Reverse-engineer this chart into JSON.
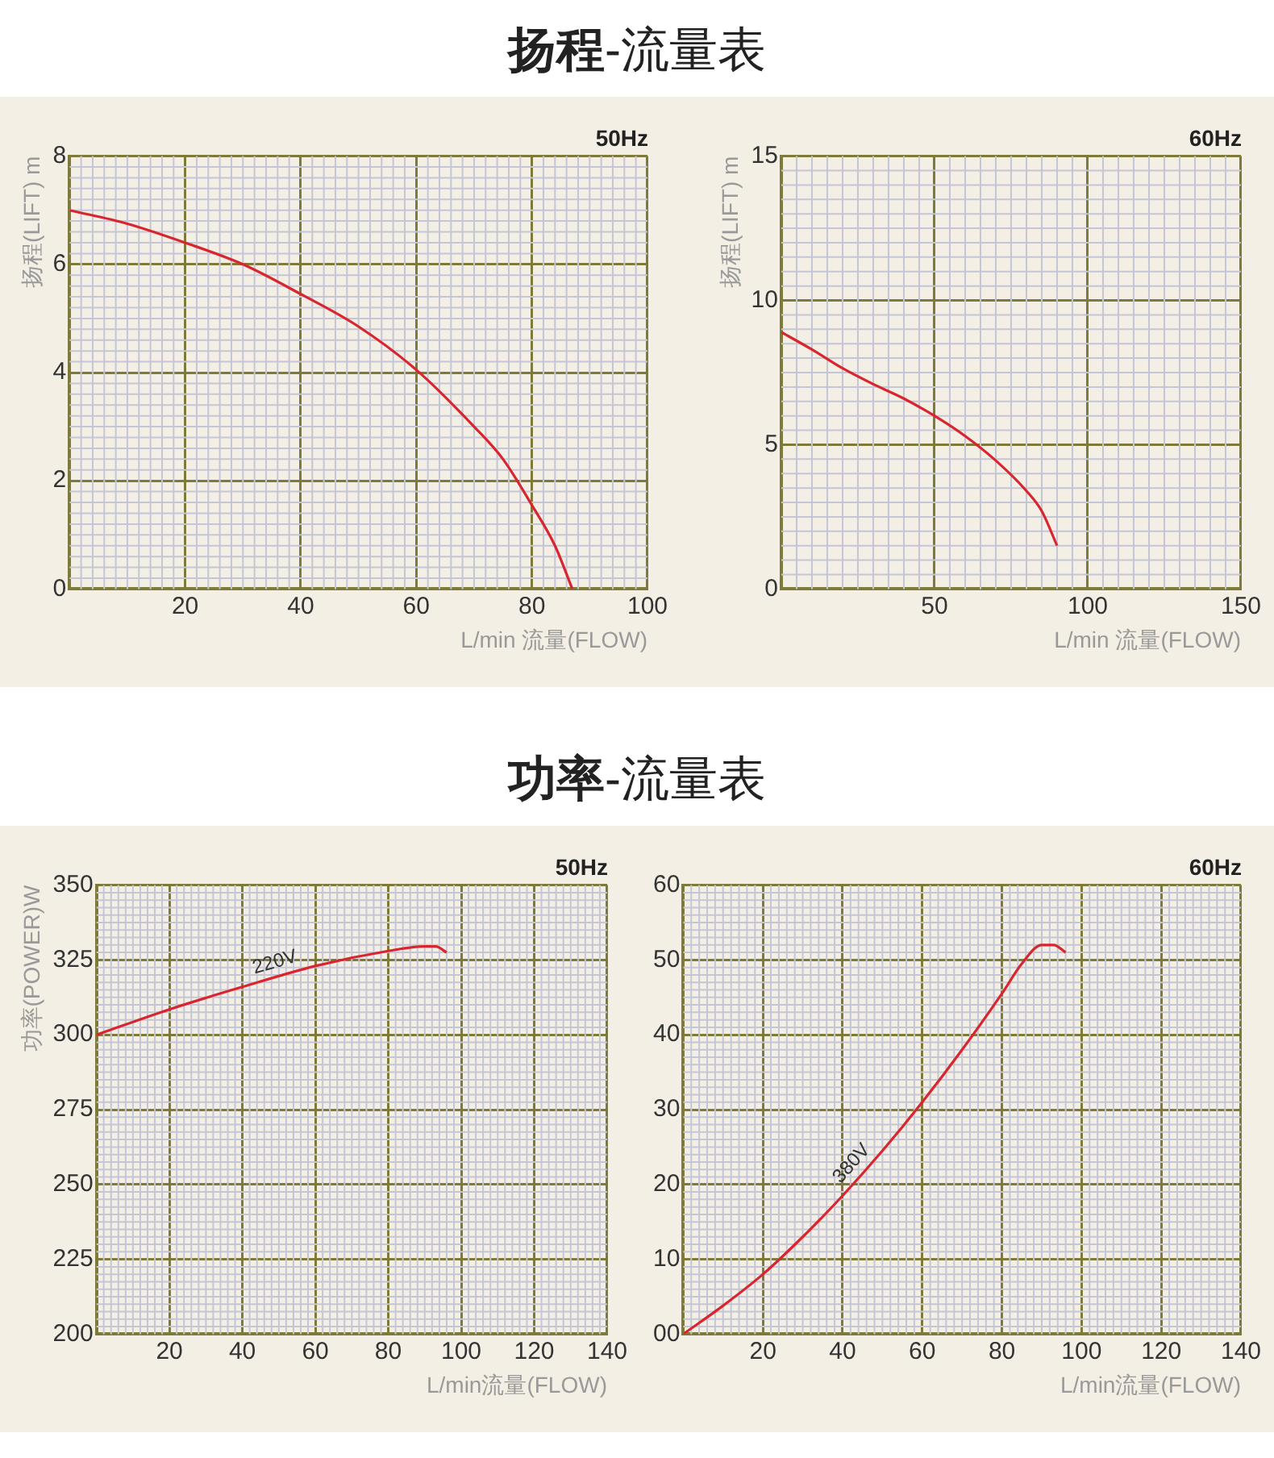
{
  "chart_data": [
    {
      "type": "line",
      "title": "扬程-流量表",
      "subtitle": "50Hz",
      "xlabel": "L/min 流量(FLOW)",
      "ylabel": "扬程(LIFT) m",
      "xlim": [
        0,
        100
      ],
      "xticks": [
        20,
        40,
        60,
        80,
        100
      ],
      "ylim": [
        0,
        8
      ],
      "yticks": [
        0,
        2,
        4,
        6,
        8
      ],
      "grid": true,
      "legend": false,
      "marker": "none",
      "line_style": "solid",
      "series": [
        {
          "color": "#d9252f",
          "x": [
            0,
            10,
            20,
            30,
            40,
            50,
            60,
            70,
            75,
            80,
            84,
            87
          ],
          "values": [
            7.0,
            6.75,
            6.4,
            6.0,
            5.45,
            4.85,
            4.05,
            3.0,
            2.4,
            1.55,
            0.8,
            0
          ]
        }
      ]
    },
    {
      "type": "line",
      "subtitle": "60Hz",
      "xlabel": "L/min 流量(FLOW)",
      "ylabel": "扬程(LIFT) m",
      "xlim": [
        0,
        150
      ],
      "xticks": [
        50,
        100,
        150
      ],
      "ylim": [
        0,
        15
      ],
      "yticks": [
        0,
        5,
        10,
        15
      ],
      "grid": true,
      "legend": false,
      "marker": "none",
      "line_style": "solid",
      "series": [
        {
          "color": "#d9252f",
          "x": [
            0,
            10,
            20,
            30,
            40,
            50,
            60,
            70,
            80,
            85,
            90
          ],
          "values": [
            8.9,
            8.3,
            7.65,
            7.1,
            6.6,
            6.0,
            5.3,
            4.45,
            3.4,
            2.7,
            1.5
          ]
        }
      ]
    },
    {
      "type": "line",
      "title": "功率-流量表",
      "subtitle": "50Hz",
      "xlabel": "L/min流量(FLOW)",
      "ylabel": "功率(POWER)W",
      "xlim": [
        0,
        140
      ],
      "xticks": [
        20,
        40,
        60,
        80,
        100,
        120,
        140
      ],
      "ylim": [
        200,
        350
      ],
      "yticks": [
        200,
        225,
        250,
        275,
        300,
        325,
        350
      ],
      "grid": true,
      "legend": false,
      "marker": "none",
      "line_style": "solid",
      "series": [
        {
          "name": "220V",
          "color": "#d9252f",
          "x": [
            0,
            20,
            40,
            60,
            80,
            90,
            93,
            96
          ],
          "values": [
            300,
            308.5,
            316,
            323,
            328,
            329.5,
            329.5,
            327.5
          ]
        }
      ]
    },
    {
      "type": "line",
      "subtitle": "60Hz",
      "xlabel": "L/min流量(FLOW)",
      "xlim": [
        0,
        140
      ],
      "xticks": [
        20,
        40,
        60,
        80,
        100,
        120,
        140
      ],
      "ylim": [
        0,
        60
      ],
      "yticks": [
        {
          "value": 0,
          "label": "00"
        },
        10,
        20,
        30,
        40,
        50,
        60
      ],
      "grid": true,
      "legend": false,
      "marker": "none",
      "line_style": "solid",
      "series": [
        {
          "name": "380V",
          "color": "#d9252f",
          "x": [
            0,
            10,
            20,
            30,
            40,
            50,
            60,
            70,
            80,
            85,
            90,
            93,
            96
          ],
          "values": [
            0,
            3.8,
            8,
            13,
            18.5,
            24.5,
            31,
            38,
            45.5,
            49.5,
            52,
            52,
            51
          ]
        }
      ]
    }
  ]
}
